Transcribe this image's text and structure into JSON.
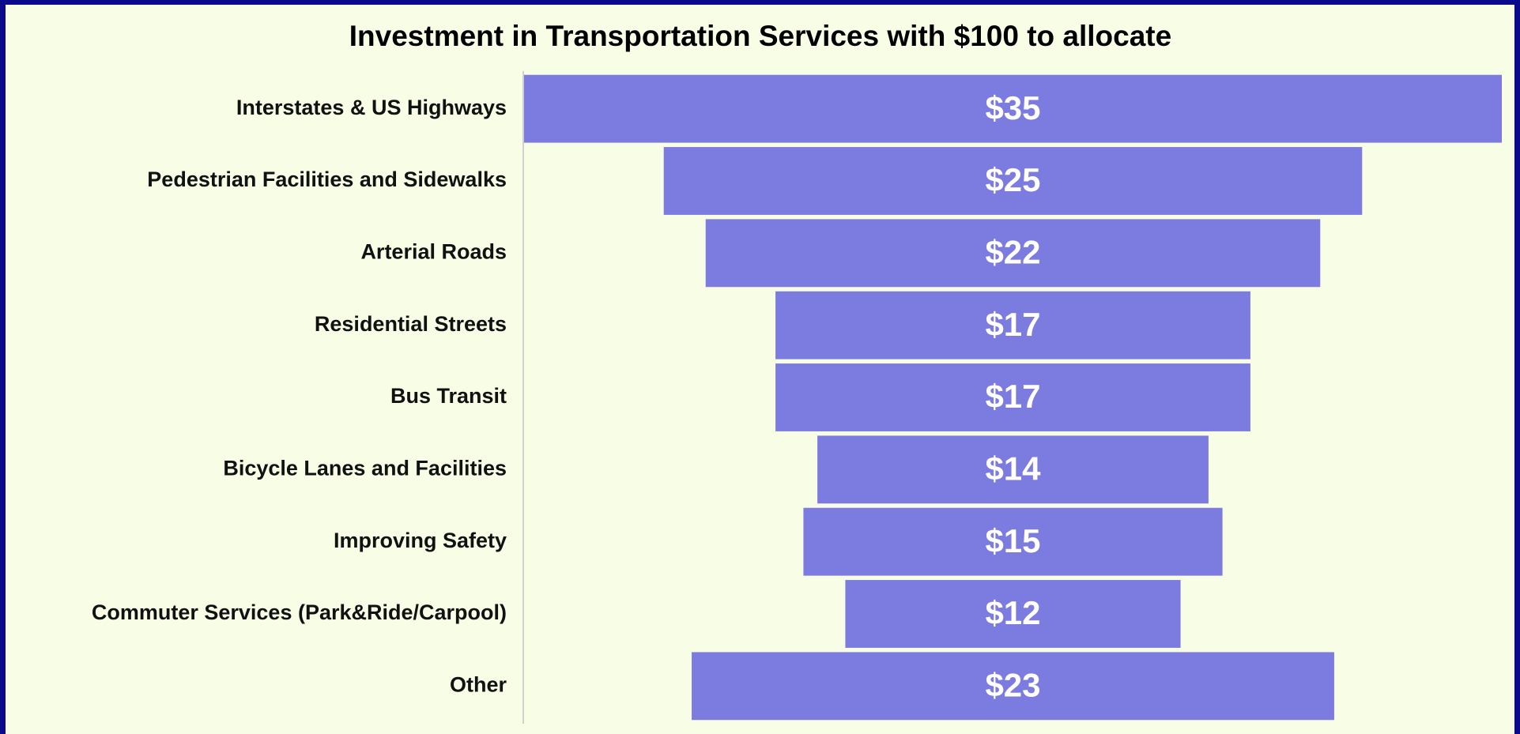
{
  "chart_data": {
    "type": "funnel",
    "title": "Investment in Transportation Services with $100 to allocate",
    "categories": [
      "Interstates & US Highways",
      "Pedestrian Facilities and Sidewalks",
      "Arterial Roads",
      "Residential Streets",
      "Bus Transit",
      "Bicycle Lanes and Facilities",
      "Improving Safety",
      "Commuter Services (Park&Ride/Carpool)",
      "Other"
    ],
    "values": [
      35,
      25,
      22,
      17,
      17,
      14,
      15,
      12,
      23
    ],
    "value_labels": [
      "$35",
      "$25",
      "$22",
      "$17",
      "$17",
      "$14",
      "$15",
      "$12",
      "$23"
    ],
    "color": "#7b7be0"
  }
}
